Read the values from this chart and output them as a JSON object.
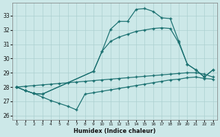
{
  "xlabel": "Humidex (Indice chaleur)",
  "bg_color": "#cce8e8",
  "grid_color": "#aacfcf",
  "line_color": "#1a7070",
  "xlim": [
    -0.5,
    23.5
  ],
  "ylim": [
    25.7,
    33.9
  ],
  "xticks": [
    0,
    1,
    2,
    3,
    4,
    5,
    6,
    7,
    8,
    9,
    10,
    11,
    12,
    13,
    14,
    15,
    16,
    17,
    18,
    19,
    20,
    21,
    22,
    23
  ],
  "yticks": [
    26,
    27,
    28,
    29,
    30,
    31,
    32,
    33
  ],
  "lines": [
    [
      [
        0,
        28.0
      ],
      [
        1,
        27.75
      ],
      [
        2,
        27.55
      ],
      [
        3,
        27.3
      ],
      [
        4,
        27.05
      ],
      [
        5,
        26.85
      ],
      [
        6,
        26.65
      ],
      [
        7,
        26.4
      ],
      [
        8,
        27.5
      ],
      [
        9,
        27.6
      ],
      [
        10,
        27.7
      ],
      [
        11,
        27.8
      ],
      [
        12,
        27.9
      ],
      [
        13,
        28.0
      ],
      [
        14,
        28.1
      ],
      [
        15,
        28.2
      ],
      [
        16,
        28.3
      ],
      [
        17,
        28.4
      ],
      [
        18,
        28.5
      ],
      [
        19,
        28.55
      ],
      [
        20,
        28.65
      ],
      [
        21,
        28.7
      ],
      [
        22,
        28.6
      ],
      [
        23,
        28.55
      ]
    ],
    [
      [
        0,
        28.0
      ],
      [
        1,
        28.05
      ],
      [
        2,
        28.1
      ],
      [
        3,
        28.15
      ],
      [
        4,
        28.2
      ],
      [
        5,
        28.25
      ],
      [
        6,
        28.3
      ],
      [
        7,
        28.35
      ],
      [
        8,
        28.4
      ],
      [
        9,
        28.45
      ],
      [
        10,
        28.5
      ],
      [
        11,
        28.55
      ],
      [
        12,
        28.6
      ],
      [
        13,
        28.65
      ],
      [
        14,
        28.7
      ],
      [
        15,
        28.75
      ],
      [
        16,
        28.8
      ],
      [
        17,
        28.85
      ],
      [
        18,
        28.9
      ],
      [
        19,
        28.95
      ],
      [
        20,
        29.0
      ],
      [
        21,
        29.0
      ],
      [
        22,
        28.9
      ],
      [
        23,
        28.7
      ]
    ],
    [
      [
        0,
        28.0
      ],
      [
        1,
        27.75
      ],
      [
        2,
        27.55
      ],
      [
        3,
        27.5
      ],
      [
        9,
        29.1
      ],
      [
        10,
        30.5
      ],
      [
        11,
        32.05
      ],
      [
        12,
        32.6
      ],
      [
        13,
        32.6
      ],
      [
        14,
        33.45
      ],
      [
        15,
        33.5
      ],
      [
        16,
        33.3
      ],
      [
        17,
        32.85
      ],
      [
        18,
        32.8
      ],
      [
        19,
        31.2
      ],
      [
        20,
        29.6
      ],
      [
        21,
        29.2
      ],
      [
        22,
        28.7
      ],
      [
        23,
        29.2
      ]
    ],
    [
      [
        0,
        28.0
      ],
      [
        1,
        27.75
      ],
      [
        2,
        27.55
      ],
      [
        3,
        27.5
      ],
      [
        9,
        29.1
      ],
      [
        10,
        30.5
      ],
      [
        11,
        31.2
      ],
      [
        12,
        31.5
      ],
      [
        13,
        31.7
      ],
      [
        14,
        31.9
      ],
      [
        15,
        32.0
      ],
      [
        16,
        32.1
      ],
      [
        17,
        32.15
      ],
      [
        18,
        32.1
      ],
      [
        19,
        31.1
      ],
      [
        20,
        29.6
      ],
      [
        21,
        29.2
      ],
      [
        22,
        28.7
      ],
      [
        23,
        29.2
      ]
    ]
  ]
}
